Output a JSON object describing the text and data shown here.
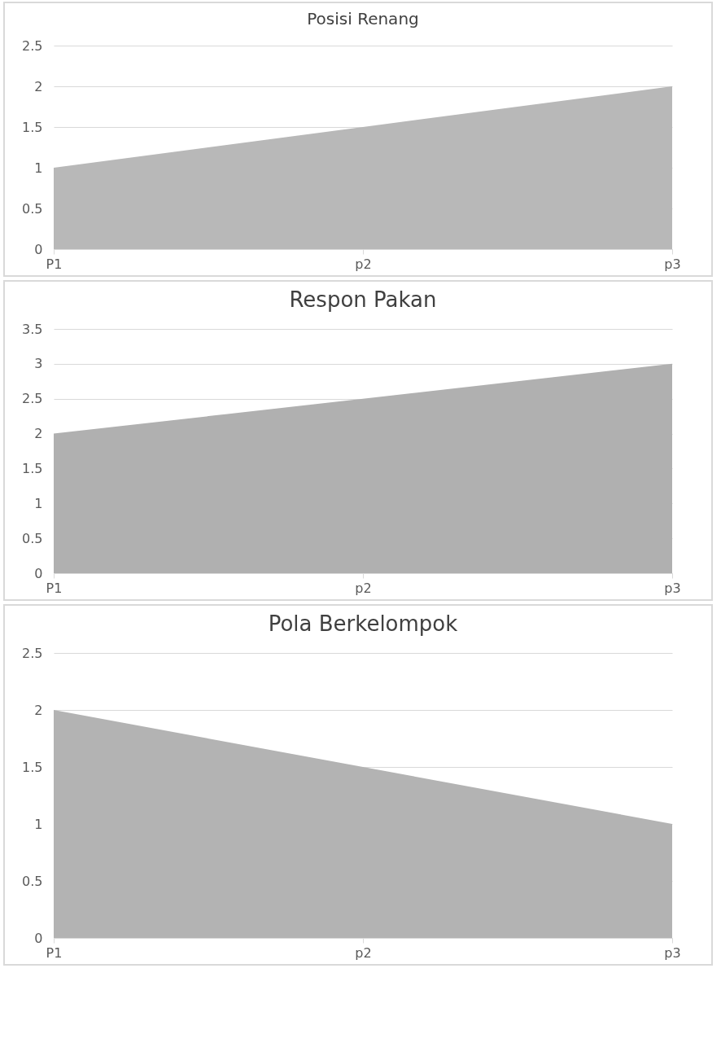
{
  "chart_data": [
    {
      "type": "area",
      "title": "Posisi Renang",
      "categories": [
        "P1",
        "p2",
        "p3"
      ],
      "series": [
        {
          "color": "#b8b8b8",
          "values": [
            1,
            1.5,
            2
          ]
        }
      ],
      "ylim": [
        0,
        2.5
      ],
      "yticks": [
        0,
        0.5,
        1,
        1.5,
        2,
        2.5
      ],
      "grid": "y"
    },
    {
      "type": "area",
      "title": "Respon Pakan",
      "categories": [
        "P1",
        "p2",
        "p3"
      ],
      "series": [
        {
          "color": "#b0b0b0",
          "values": [
            2,
            2.5,
            3
          ]
        }
      ],
      "ylim": [
        0,
        3.5
      ],
      "yticks": [
        0,
        0.5,
        1,
        1.5,
        2,
        2.5,
        3,
        3.5
      ],
      "grid": "y"
    },
    {
      "type": "area",
      "title": "Pola Berkelompok",
      "categories": [
        "P1",
        "p2",
        "p3"
      ],
      "series": [
        {
          "color": "#b3b3b3",
          "values": [
            2,
            1.5,
            1
          ]
        }
      ],
      "ylim": [
        0,
        2.5
      ],
      "yticks": [
        0,
        0.5,
        1,
        1.5,
        2,
        2.5
      ],
      "grid": "y"
    }
  ]
}
